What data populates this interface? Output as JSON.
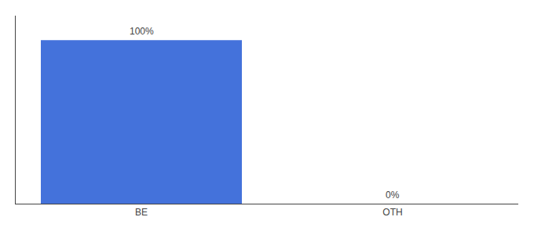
{
  "chart_data": {
    "type": "bar",
    "categories": [
      "BE",
      "OTH"
    ],
    "values": [
      100,
      0
    ],
    "value_labels": [
      "100%",
      "0%"
    ],
    "color": "#4472db",
    "ylim": [
      0,
      115
    ],
    "data_labels": true,
    "tick_labels": "x",
    "grid": false
  }
}
